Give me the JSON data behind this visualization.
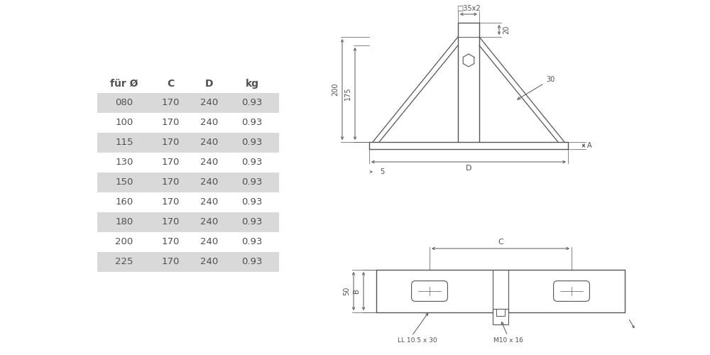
{
  "background_color": "#ffffff",
  "table_headers": [
    "für Ø",
    "C",
    "D",
    "kg"
  ],
  "table_rows": [
    [
      "080",
      "170",
      "240",
      "0.93"
    ],
    [
      "100",
      "170",
      "240",
      "0.93"
    ],
    [
      "115",
      "170",
      "240",
      "0.93"
    ],
    [
      "130",
      "170",
      "240",
      "0.93"
    ],
    [
      "150",
      "170",
      "240",
      "0.93"
    ],
    [
      "160",
      "170",
      "240",
      "0.93"
    ],
    [
      "180",
      "170",
      "240",
      "0.93"
    ],
    [
      "200",
      "170",
      "240",
      "0.93"
    ],
    [
      "225",
      "170",
      "240",
      "0.93"
    ]
  ],
  "shaded_rows": [
    0,
    2,
    4,
    6,
    8
  ],
  "row_bg_shaded": "#d9d9d9",
  "text_color": "#505050",
  "line_color": "#555555",
  "font_size_table": 9.5,
  "font_size_header": 10,
  "font_size_dim": 7
}
